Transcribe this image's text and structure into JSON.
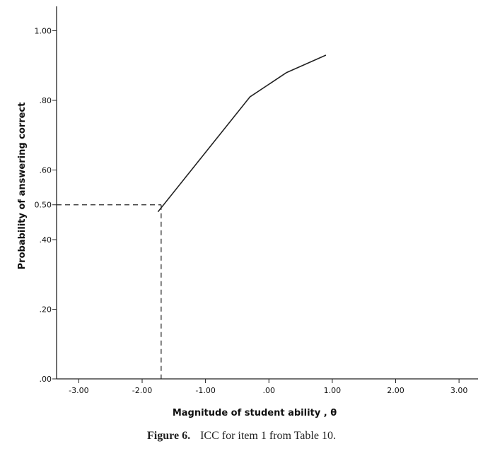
{
  "chart_data": {
    "type": "line",
    "xlabel": "Magnitude of student ability , θ",
    "ylabel": "Probability of answering correct",
    "xlim": [
      -3.35,
      3.3
    ],
    "ylim": [
      0,
      1.07
    ],
    "x_ticks": [
      {
        "value": -3,
        "label": "-3.00"
      },
      {
        "value": -2,
        "label": "-2.00"
      },
      {
        "value": -1,
        "label": "-1.00"
      },
      {
        "value": 0,
        "label": ".00"
      },
      {
        "value": 1,
        "label": "1.00"
      },
      {
        "value": 2,
        "label": "2.00"
      },
      {
        "value": 3,
        "label": "3.00"
      }
    ],
    "y_ticks": [
      {
        "value": 0,
        "label": ".00"
      },
      {
        "value": 0.2,
        "label": ".20"
      },
      {
        "value": 0.4,
        "label": ".40"
      },
      {
        "value": 0.5,
        "label": "0.50"
      },
      {
        "value": 0.6,
        "label": ".60"
      },
      {
        "value": 0.8,
        "label": ".80"
      },
      {
        "value": 1.0,
        "label": "1.00"
      }
    ],
    "series": [
      {
        "x": [
          -1.75,
          -0.3,
          0.28,
          0.9
        ],
        "y": [
          0.48,
          0.81,
          0.88,
          0.93
        ]
      }
    ],
    "reference": {
      "x": -1.7,
      "y": 0.5
    },
    "grid": false,
    "line_color": "#222222"
  },
  "caption": {
    "label": "Figure 6.",
    "text": "ICC for item 1 from Table 10."
  }
}
